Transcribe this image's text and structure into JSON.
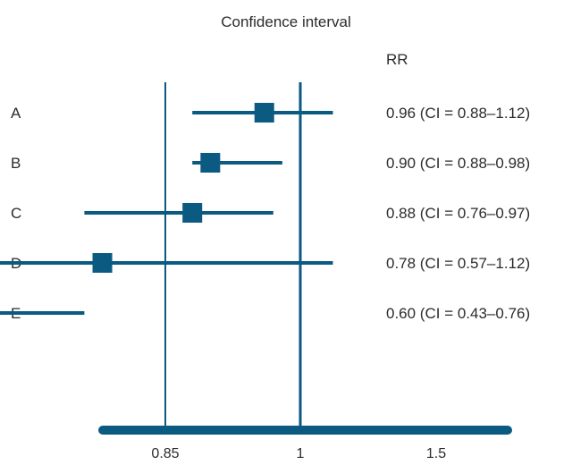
{
  "chart_data": {
    "type": "forest",
    "title": "Confidence interval",
    "column_header": "RR",
    "rows": [
      {
        "label": "A",
        "rr": 0.96,
        "ci_low": 0.88,
        "ci_high": 1.12,
        "text": "0.96 (CI = 0.88–1.12)"
      },
      {
        "label": "B",
        "rr": 0.9,
        "ci_low": 0.88,
        "ci_high": 0.98,
        "text": "0.90 (CI = 0.88–0.98)"
      },
      {
        "label": "C",
        "rr": 0.88,
        "ci_low": 0.76,
        "ci_high": 0.97,
        "text": "0.88 (CI = 0.76–0.97)"
      },
      {
        "label": "D",
        "rr": 0.78,
        "ci_low": 0.57,
        "ci_high": 1.12,
        "text": "0.78 (CI = 0.57–1.12)"
      },
      {
        "label": "E",
        "rr": 0.6,
        "ci_low": 0.43,
        "ci_high": 0.76,
        "text": "0.60 (CI = 0.43–0.76)"
      }
    ],
    "x_ticks": [
      {
        "value": 0.85,
        "label": "0.85"
      },
      {
        "value": 1,
        "label": "1"
      },
      {
        "value": 1.5,
        "label": "1.5"
      }
    ],
    "reference_lines": [
      0.85,
      1
    ],
    "color": "#0b5a82"
  }
}
